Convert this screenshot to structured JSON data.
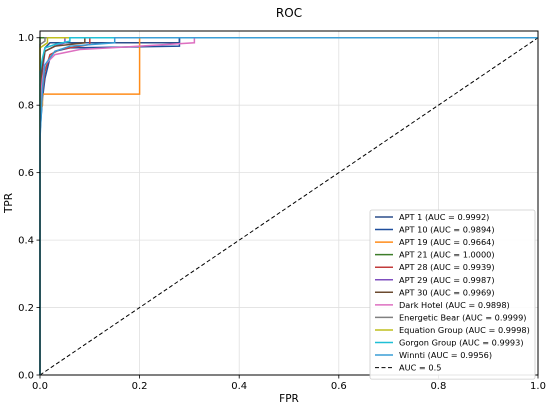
{
  "chart_data": {
    "type": "line",
    "title": "ROC",
    "xlabel": "FPR",
    "ylabel": "TPR",
    "xlim": [
      0,
      1
    ],
    "ylim": [
      0,
      1.02
    ],
    "x_ticks": [
      "0.0",
      "0.2",
      "0.4",
      "0.6",
      "0.8",
      "1.0"
    ],
    "y_ticks": [
      "0.0",
      "0.2",
      "0.4",
      "0.6",
      "0.8",
      "1.0"
    ],
    "grid": true,
    "legend_position": "lower-right",
    "series": [
      {
        "name": "APT 1 (AUC = 0.9992)",
        "color": "#2b4f8c",
        "style": "solid",
        "x": [
          0,
          0,
          0.005,
          0.01,
          0.02,
          0.28,
          0.28,
          1.0
        ],
        "y": [
          0,
          0.86,
          0.93,
          0.97,
          0.985,
          0.985,
          1.0,
          1.0
        ]
      },
      {
        "name": "APT 10 (AUC = 0.9894)",
        "color": "#1f4e9c",
        "style": "solid",
        "x": [
          0,
          0,
          0.005,
          0.01,
          0.02,
          0.03,
          0.06,
          0.28,
          0.28,
          1.0
        ],
        "y": [
          0,
          0.72,
          0.82,
          0.88,
          0.94,
          0.96,
          0.97,
          0.975,
          1.0,
          1.0
        ]
      },
      {
        "name": "APT 19 (AUC = 0.9664)",
        "color": "#ff8c1a",
        "style": "solid",
        "x": [
          0,
          0,
          0.005,
          0.005,
          0.2,
          0.2,
          1.0
        ],
        "y": [
          0,
          0.78,
          0.8,
          0.833,
          0.833,
          1.0,
          1.0
        ]
      },
      {
        "name": "APT 21 (AUC = 1.0000)",
        "color": "#3d7d2a",
        "style": "solid",
        "x": [
          0,
          0,
          1.0
        ],
        "y": [
          0,
          1.0,
          1.0
        ]
      },
      {
        "name": "APT 28 (AUC = 0.9939)",
        "color": "#c23b3b",
        "style": "solid",
        "x": [
          0,
          0,
          0.005,
          0.01,
          0.02,
          0.04,
          0.08,
          0.1,
          0.1,
          1.0
        ],
        "y": [
          0,
          0.74,
          0.84,
          0.9,
          0.95,
          0.965,
          0.975,
          0.98,
          1.0,
          1.0
        ]
      },
      {
        "name": "APT 29 (AUC = 0.9987)",
        "color": "#7f4fbf",
        "style": "solid",
        "x": [
          0,
          0,
          0.005,
          0.01,
          0.03,
          0.05,
          0.05,
          1.0
        ],
        "y": [
          0,
          0.8,
          0.9,
          0.96,
          0.975,
          0.985,
          1.0,
          1.0
        ]
      },
      {
        "name": "APT 30 (AUC = 0.9969)",
        "color": "#6b4a2f",
        "style": "solid",
        "x": [
          0,
          0,
          0.005,
          0.01,
          0.03,
          0.09,
          0.09,
          1.0
        ],
        "y": [
          0,
          0.83,
          0.92,
          0.96,
          0.975,
          0.985,
          1.0,
          1.0
        ]
      },
      {
        "name": "Dark Hotel (AUC = 0.9898)",
        "color": "#dd6fc0",
        "style": "solid",
        "x": [
          0,
          0,
          0.005,
          0.01,
          0.03,
          0.08,
          0.2,
          0.31,
          0.31,
          1.0
        ],
        "y": [
          0,
          0.8,
          0.88,
          0.92,
          0.95,
          0.965,
          0.975,
          0.985,
          1.0,
          1.0
        ]
      },
      {
        "name": "Energetic Bear (AUC = 0.9999)",
        "color": "#808080",
        "style": "solid",
        "x": [
          0,
          0,
          0.01,
          0.01,
          1.0
        ],
        "y": [
          0,
          0.98,
          0.99,
          1.0,
          1.0
        ]
      },
      {
        "name": "Equation Group (AUC = 0.9998)",
        "color": "#bfbf1f",
        "style": "solid",
        "x": [
          0,
          0,
          0.015,
          0.015,
          1.0
        ],
        "y": [
          0,
          0.97,
          0.985,
          1.0,
          1.0
        ]
      },
      {
        "name": "Gorgon Group (AUC = 0.9993)",
        "color": "#1fbfd6",
        "style": "solid",
        "x": [
          0,
          0,
          0.005,
          0.01,
          0.03,
          0.06,
          0.06,
          1.0
        ],
        "y": [
          0,
          0.9,
          0.94,
          0.97,
          0.98,
          0.99,
          1.0,
          1.0
        ]
      },
      {
        "name": "Winnti (AUC = 0.9956)",
        "color": "#3a9ed6",
        "style": "solid",
        "x": [
          0,
          0,
          0.005,
          0.01,
          0.03,
          0.06,
          0.15,
          0.15,
          1.0
        ],
        "y": [
          0,
          0.7,
          0.85,
          0.92,
          0.96,
          0.975,
          0.985,
          1.0,
          1.0
        ]
      },
      {
        "name": "AUC = 0.5",
        "color": "#000000",
        "style": "dashed",
        "x": [
          0,
          1
        ],
        "y": [
          0,
          1
        ]
      }
    ]
  }
}
